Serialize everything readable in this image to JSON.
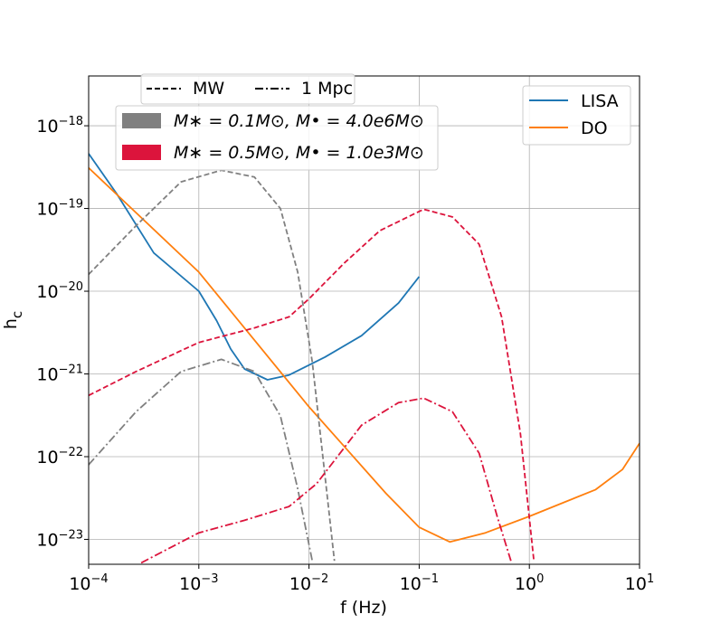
{
  "chart_data": {
    "type": "line",
    "xlabel": "f (Hz)",
    "ylabel": "hc",
    "xscale": "log",
    "yscale": "log",
    "grid": true,
    "xlim": [
      0.0001,
      10
    ],
    "ylim": [
      5e-24,
      4e-18
    ],
    "xticks": [
      {
        "value": 0.0001,
        "label": "10−4"
      },
      {
        "value": 0.001,
        "label": "10−3"
      },
      {
        "value": 0.01,
        "label": "10−2"
      },
      {
        "value": 0.1,
        "label": "10−1"
      },
      {
        "value": 1,
        "label": "100"
      },
      {
        "value": 10,
        "label": "101"
      }
    ],
    "yticks": [
      {
        "value": 1e-23,
        "label": "10−23"
      },
      {
        "value": 1e-22,
        "label": "10−22"
      },
      {
        "value": 1e-21,
        "label": "10−21"
      },
      {
        "value": 1e-20,
        "label": "10−20"
      },
      {
        "value": 1e-19,
        "label": "10−19"
      },
      {
        "value": 1e-18,
        "label": "10−18"
      }
    ],
    "style_legend": [
      {
        "name": "MW",
        "dash": "dashed"
      },
      {
        "name": "1 Mpc",
        "dash": "dashdot"
      }
    ],
    "mass_legend": [
      {
        "name": "M∗ = 0.1M⊙, M• = 4.0e6M⊙",
        "color": "#808080"
      },
      {
        "name": "M∗ = 0.5M⊙, M• = 1.0e3M⊙",
        "color": "#dc143c"
      }
    ],
    "legend": "upper right",
    "series": [
      {
        "name": "LISA",
        "color": "#1f77b4",
        "dash": "solid",
        "x": [
          0.0001,
          0.00018,
          0.00039,
          0.001,
          0.00145,
          0.00195,
          0.0026,
          0.0042,
          0.0066,
          0.014,
          0.03,
          0.065,
          0.1
        ],
        "values": [
          4.6e-19,
          1.5e-19,
          2.9e-20,
          1e-20,
          4.4e-21,
          2e-21,
          1.15e-21,
          8.5e-22,
          9.7e-22,
          1.6e-21,
          2.9e-21,
          7.2e-21,
          1.5e-20
        ]
      },
      {
        "name": "DO",
        "color": "#ff7f0e",
        "dash": "solid",
        "x": [
          0.0001,
          0.001,
          0.01,
          0.05,
          0.1,
          0.19,
          0.4,
          1,
          4,
          7,
          10
        ],
        "values": [
          3.1e-19,
          1.7e-20,
          4e-22,
          3.6e-23,
          1.4e-23,
          9.3e-24,
          1.2e-23,
          1.9e-23,
          4e-23,
          7e-23,
          1.45e-22
        ]
      },
      {
        "color": "#808080",
        "dash": "dashed",
        "x": [
          0.0001,
          0.00027,
          0.00069,
          0.0016,
          0.0032,
          0.0055,
          0.0079,
          0.0107,
          0.0141,
          0.017
        ],
        "values": [
          1.6e-20,
          6.2e-20,
          2.1e-19,
          2.9e-19,
          2.4e-19,
          1e-19,
          1.7e-20,
          1.4e-21,
          5.2e-23,
          5.5e-24
        ]
      },
      {
        "color": "#808080",
        "dash": "dashdot",
        "x": [
          0.0001,
          0.00027,
          0.00069,
          0.0016,
          0.0032,
          0.0055,
          0.0079,
          0.0107
        ],
        "values": [
          8e-23,
          3.5e-22,
          1.07e-21,
          1.5e-21,
          1.07e-21,
          3.1e-22,
          4.1e-23,
          5.5e-24
        ]
      },
      {
        "color": "#dc143c",
        "dash": "dashed",
        "x": [
          0.0001,
          0.00027,
          0.001,
          0.0032,
          0.0066,
          0.01,
          0.021,
          0.044,
          0.11,
          0.2,
          0.35,
          0.56,
          0.83,
          1.1
        ],
        "values": [
          5.5e-22,
          1.07e-21,
          2.4e-21,
          3.6e-21,
          4.9e-21,
          8.1e-21,
          2.2e-20,
          5.4e-20,
          9.8e-20,
          7.9e-20,
          3.7e-20,
          4.9e-21,
          1.9e-22,
          5.5e-24
        ]
      },
      {
        "color": "#dc143c",
        "dash": "dashdot",
        "x": [
          0.0003,
          0.001,
          0.0026,
          0.0066,
          0.0117,
          0.03,
          0.065,
          0.11,
          0.2,
          0.35,
          0.51,
          0.68
        ],
        "values": [
          5.2e-24,
          1.2e-23,
          1.7e-23,
          2.5e-23,
          4.7e-23,
          2.4e-22,
          4.5e-22,
          5.1e-22,
          3.5e-22,
          1.1e-22,
          1.9e-23,
          5.5e-24
        ]
      }
    ]
  }
}
